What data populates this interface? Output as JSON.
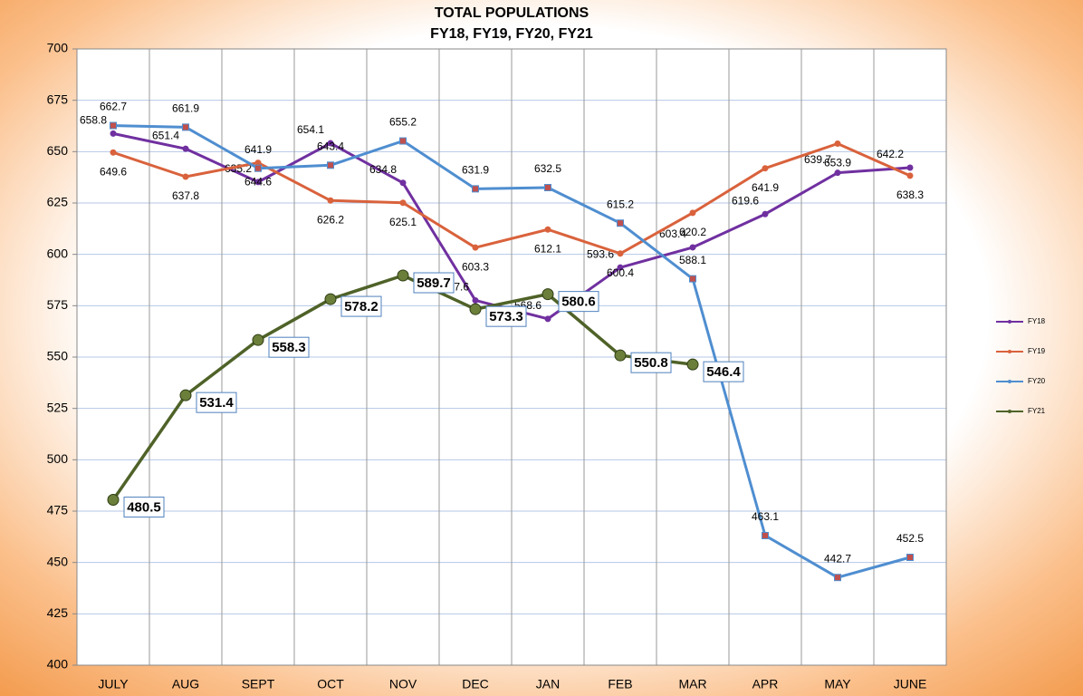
{
  "chart_data": {
    "type": "line",
    "title": "TOTAL POPULATIONS",
    "subtitle": "FY18, FY19, FY20, FY21",
    "categories": [
      "JULY",
      "AUG",
      "SEPT",
      "OCT",
      "NOV",
      "DEC",
      "JAN",
      "FEB",
      "MAR",
      "APR",
      "MAY",
      "JUNE"
    ],
    "series": [
      {
        "name": "FY18",
        "color": "#7030a0",
        "values": [
          658.8,
          651.4,
          635.2,
          654.1,
          634.8,
          577.6,
          568.6,
          593.6,
          603.4,
          619.6,
          639.7,
          642.2
        ]
      },
      {
        "name": "FY19",
        "color": "#d9623c",
        "values": [
          649.6,
          637.8,
          644.6,
          626.2,
          625.1,
          603.3,
          612.1,
          600.4,
          620.2,
          641.9,
          653.9,
          638.3
        ]
      },
      {
        "name": "FY20",
        "color": "#4f8ed0",
        "values": [
          662.7,
          661.9,
          641.9,
          643.4,
          655.2,
          631.9,
          632.5,
          615.2,
          588.1,
          463.1,
          442.7,
          452.5
        ]
      },
      {
        "name": "FY21",
        "color": "#4f6228",
        "values": [
          480.5,
          531.4,
          558.3,
          578.2,
          589.7,
          573.3,
          580.6,
          550.8,
          546.4,
          null,
          null,
          null
        ]
      }
    ],
    "ylim": [
      400,
      700
    ],
    "yticks": [
      400,
      425,
      450,
      475,
      500,
      525,
      550,
      575,
      600,
      625,
      650,
      675,
      700
    ],
    "grid": true,
    "legend": "right"
  }
}
